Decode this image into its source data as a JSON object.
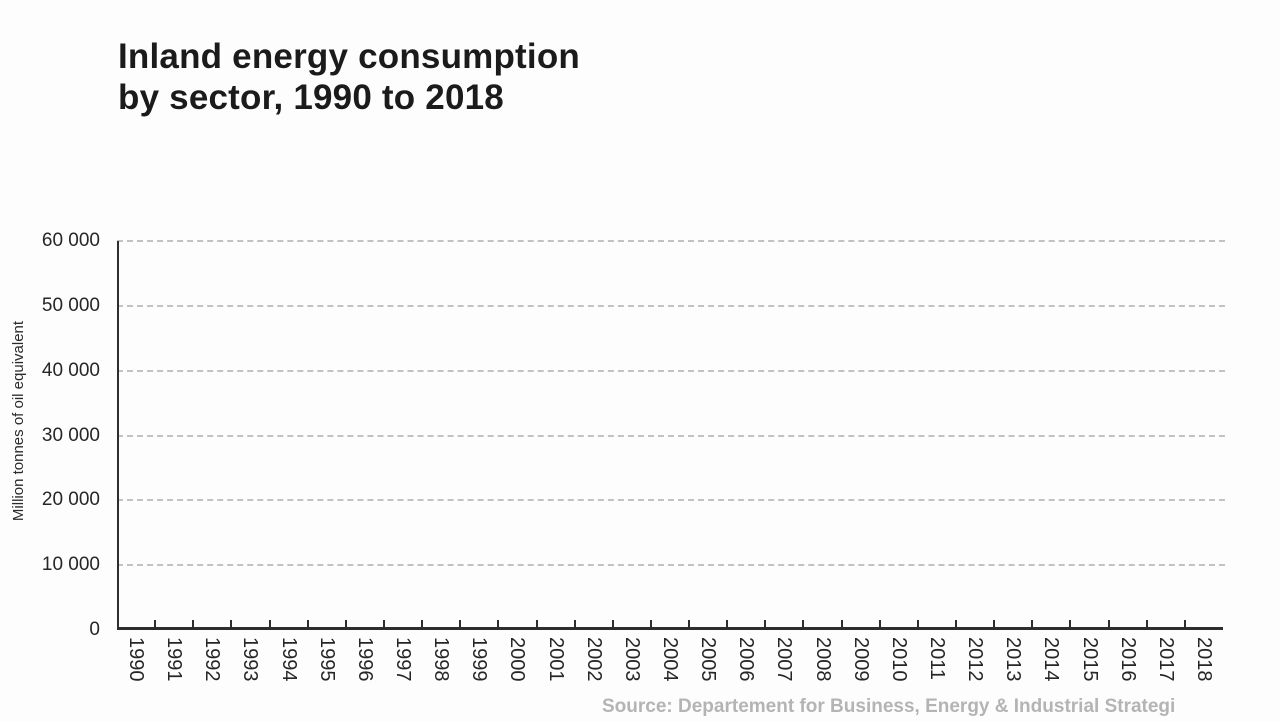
{
  "title": {
    "line1": "Inland energy consumption",
    "line2": "by sector, 1990 to 2018"
  },
  "y_axis": {
    "label": "Million tonnes of oil equivalent"
  },
  "source": {
    "text": "Source: Departement for Business, Energy & Industrial Strategi"
  },
  "colors": {
    "background": "#fdfdfd",
    "title_text": "#1b1b1b",
    "axis_line": "#2e2e2e",
    "tick_label": "#262626",
    "gridline": "#c2c2c2",
    "source_text": "#b4b4b4"
  },
  "chart_data": {
    "type": "line",
    "title": "Inland energy consumption by sector, 1990 to 2018",
    "xlabel": "",
    "ylabel": "Million tonnes of oil equivalent",
    "x_categories": [
      "1990",
      "1991",
      "1992",
      "1993",
      "1994",
      "1995",
      "1996",
      "1997",
      "1998",
      "1999",
      "2000",
      "2001",
      "2002",
      "2003",
      "2004",
      "2005",
      "2006",
      "2007",
      "2008",
      "2009",
      "2010",
      "2011",
      "2012",
      "2013",
      "2014",
      "2015",
      "2016",
      "2017",
      "2018"
    ],
    "y_tick_labels_desc": [
      "60 000",
      "50 000",
      "40 000",
      "30 000",
      "20 000",
      "10 000",
      "0"
    ],
    "y_tick_values_desc": [
      60000,
      50000,
      40000,
      30000,
      20000,
      10000,
      0
    ],
    "ylim": [
      0,
      60000
    ],
    "grid": true,
    "grid_style": "horizontal-dashed",
    "legend_position": "none",
    "series": []
  }
}
